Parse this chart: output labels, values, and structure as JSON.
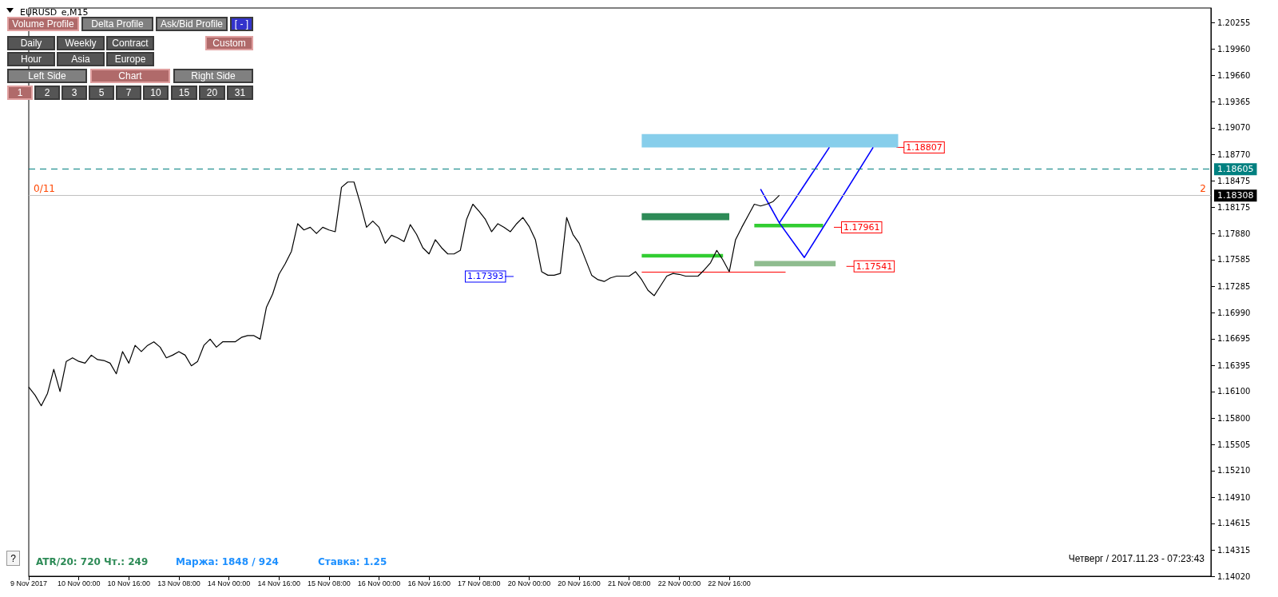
{
  "chart_data": {
    "type": "line",
    "title": "EURUSD_e,M15",
    "categories": [
      "9 Nov 2017",
      null,
      null,
      null,
      null,
      null,
      null,
      null,
      "10 Nov 00:00",
      null,
      null,
      null,
      null,
      null,
      null,
      null,
      "10 Nov 16:00",
      null,
      null,
      null,
      null,
      null,
      null,
      null,
      "13 Nov 08:00",
      null,
      null,
      null,
      null,
      null,
      null,
      null,
      "14 Nov 00:00",
      null,
      null,
      null,
      null,
      null,
      null,
      null,
      "14 Nov 16:00",
      null,
      null,
      null,
      null,
      null,
      null,
      null,
      "15 Nov 08:00",
      null,
      null,
      null,
      null,
      null,
      null,
      null,
      "16 Nov 00:00",
      null,
      null,
      null,
      null,
      null,
      null,
      null,
      "16 Nov 16:00",
      null,
      null,
      null,
      null,
      null,
      null,
      null,
      "17 Nov 08:00",
      null,
      null,
      null,
      null,
      null,
      null,
      null,
      "20 Nov 00:00",
      null,
      null,
      null,
      null,
      null,
      null,
      null,
      "20 Nov 16:00",
      null,
      null,
      null,
      null,
      null,
      null,
      null,
      "21 Nov 08:00",
      null,
      null,
      null,
      null,
      null,
      null,
      null,
      "22 Nov 00:00",
      null,
      null,
      null,
      null,
      null,
      null,
      null,
      "22 Nov 16:00",
      null,
      null,
      null,
      null,
      null,
      null,
      null,
      null,
      null,
      null,
      null,
      null,
      null,
      null,
      null,
      null,
      null,
      null,
      null,
      null,
      null,
      null,
      null,
      null,
      null,
      null,
      null,
      null,
      null,
      null,
      null,
      null,
      null,
      null,
      null,
      null,
      null,
      null,
      null,
      null,
      null,
      null,
      null,
      null,
      null,
      null,
      null,
      null,
      null,
      null,
      null,
      null,
      null,
      null,
      null,
      null,
      null,
      null,
      null,
      null,
      null,
      null,
      null,
      null,
      null,
      null,
      null,
      null,
      null,
      null,
      null,
      null,
      null,
      null,
      null,
      null,
      null
    ],
    "series": [
      {
        "color": "#000000",
        "values": [
          1.1615,
          1.1606,
          1.1594,
          1.1608,
          1.1635,
          1.161,
          1.1644,
          1.1648,
          1.1644,
          1.1642,
          1.1651,
          1.1646,
          1.1645,
          1.1642,
          1.163,
          1.1655,
          1.1642,
          1.1662,
          1.1655,
          1.1662,
          1.1666,
          1.166,
          1.1648,
          1.1651,
          1.1655,
          1.1651,
          1.1639,
          1.1644,
          1.1662,
          1.1669,
          1.166,
          1.1666,
          1.1666,
          1.1666,
          1.1671,
          1.1673,
          1.1673,
          1.1669,
          1.1705,
          1.172,
          1.1742,
          1.1754,
          1.1768,
          1.1799,
          1.1792,
          1.1795,
          1.1788,
          1.1795,
          1.1792,
          1.179,
          1.184,
          1.1846,
          1.1846,
          1.1822,
          1.1795,
          1.1802,
          1.1795,
          1.1777,
          1.1786,
          1.1783,
          1.1779,
          1.1798,
          1.1787,
          1.1772,
          1.1765,
          1.1781,
          1.1772,
          1.1765,
          1.1765,
          1.1769,
          1.1804,
          1.1821,
          1.1813,
          1.1804,
          1.179,
          1.1799,
          1.1795,
          1.179,
          1.1799,
          1.1806,
          1.1796,
          1.1781,
          1.1745,
          1.1741,
          1.1741,
          1.1743,
          1.1806,
          1.1787,
          1.1777,
          1.1759,
          1.1741,
          1.1736,
          1.1734,
          1.1738,
          1.174,
          1.174,
          1.174,
          1.1745,
          1.1736,
          1.1724,
          1.1718,
          1.1729,
          1.174,
          1.1743,
          1.1742,
          1.174,
          1.174,
          1.174,
          1.1747,
          1.1755,
          1.1769,
          1.1758,
          1.1745,
          1.1781,
          1.1795,
          1.1808,
          1.1821,
          1.1819,
          1.1821,
          1.1824,
          1.1831,
          null,
          null,
          null,
          null,
          null,
          null,
          null,
          null,
          null,
          null,
          null,
          null,
          null,
          null,
          null,
          null,
          null,
          null,
          null,
          null,
          null,
          null,
          null,
          null,
          null,
          null,
          null,
          null,
          null,
          null,
          null,
          null,
          null,
          null,
          null,
          null,
          null,
          null,
          null,
          null,
          null,
          null,
          null,
          null,
          null,
          null,
          null,
          null,
          null,
          null,
          null,
          null,
          null,
          null,
          null,
          null,
          null,
          null,
          null,
          null,
          null,
          null,
          null,
          null,
          null,
          null,
          null,
          null,
          null
        ]
      },
      {
        "color": "#0000ff",
        "values": [
          null,
          null,
          null,
          null,
          null,
          null,
          null,
          null,
          null,
          null,
          null,
          null,
          null,
          null,
          null,
          null,
          null,
          null,
          null,
          null,
          null,
          null,
          null,
          null,
          null,
          null,
          null,
          null,
          null,
          null,
          null,
          null,
          null,
          null,
          null,
          null,
          null,
          null,
          null,
          null,
          null,
          null,
          null,
          null,
          null,
          null,
          null,
          null,
          null,
          null,
          null,
          null,
          null,
          null,
          null,
          null,
          null,
          null,
          null,
          null,
          null,
          null,
          null,
          null,
          null,
          null,
          null,
          null,
          null,
          null,
          null,
          null,
          null,
          null,
          null,
          null,
          null,
          null,
          null,
          null,
          null,
          null,
          null,
          null,
          null,
          null,
          null,
          null,
          null,
          null,
          null,
          null,
          null,
          null,
          null,
          null,
          null,
          null,
          null,
          null,
          null,
          null,
          null,
          null,
          null,
          null,
          null,
          null,
          null,
          null,
          null,
          null,
          null,
          null,
          null,
          null,
          null,
          1.1838,
          null,
          null,
          1.18,
          null,
          null,
          null,
          1.1761,
          null,
          null,
          null,
          null,
          null,
          null,
          null,
          null,
          null,
          null,
          1.1885,
          null,
          null,
          null,
          null,
          null,
          null,
          null,
          null,
          null,
          null,
          null,
          null,
          null,
          null,
          null,
          null,
          null,
          null,
          null,
          null,
          null,
          null,
          null,
          null,
          null,
          null,
          null,
          null,
          null,
          null,
          null,
          null,
          null,
          null,
          null,
          null,
          null,
          null,
          null,
          null,
          null,
          null,
          null,
          null,
          null,
          null,
          null,
          null,
          null,
          null,
          null,
          null,
          null,
          null
        ]
      },
      {
        "color": "#0000ff",
        "values": [
          null,
          null,
          null,
          null,
          null,
          null,
          null,
          null,
          null,
          null,
          null,
          null,
          null,
          null,
          null,
          null,
          null,
          null,
          null,
          null,
          null,
          null,
          null,
          null,
          null,
          null,
          null,
          null,
          null,
          null,
          null,
          null,
          null,
          null,
          null,
          null,
          null,
          null,
          null,
          null,
          null,
          null,
          null,
          null,
          null,
          null,
          null,
          null,
          null,
          null,
          null,
          null,
          null,
          null,
          null,
          null,
          null,
          null,
          null,
          null,
          null,
          null,
          null,
          null,
          null,
          null,
          null,
          null,
          null,
          null,
          null,
          null,
          null,
          null,
          null,
          null,
          null,
          null,
          null,
          null,
          null,
          null,
          null,
          null,
          null,
          null,
          null,
          null,
          null,
          null,
          null,
          null,
          null,
          null,
          null,
          null,
          null,
          null,
          null,
          null,
          null,
          null,
          null,
          null,
          null,
          null,
          null,
          null,
          null,
          null,
          null,
          null,
          null,
          null,
          null,
          null,
          null,
          null,
          null,
          null,
          1.18,
          null,
          null,
          null,
          null,
          null,
          null,
          null,
          1.1885,
          null,
          null,
          null,
          null,
          null,
          null,
          null,
          null,
          null,
          null,
          null,
          null,
          null,
          null,
          null,
          null,
          null,
          null,
          null,
          null,
          null,
          null,
          null,
          null,
          null,
          null,
          null,
          null,
          null,
          null,
          null,
          null,
          null,
          null,
          null,
          null,
          null,
          null,
          null,
          null,
          null,
          null,
          null,
          null,
          null,
          null,
          null,
          null,
          null,
          null,
          null,
          null,
          null,
          null,
          null,
          null,
          null,
          null,
          null,
          null,
          null
        ]
      }
    ],
    "ylim": [
      1.1402,
      1.2042
    ],
    "yticks": [
      {
        "value": 1.20255,
        "label": "1.20255"
      },
      {
        "value": 1.1996,
        "label": "1.19960"
      },
      {
        "value": 1.1966,
        "label": "1.19660"
      },
      {
        "value": 1.19365,
        "label": "1.19365"
      },
      {
        "value": 1.1907,
        "label": "1.19070"
      },
      {
        "value": 1.1877,
        "label": "1.18770"
      },
      {
        "value": 1.18475,
        "label": "1.18475"
      },
      {
        "value": 1.18175,
        "label": "1.18175"
      },
      {
        "value": 1.1788,
        "label": "1.17880"
      },
      {
        "value": 1.17585,
        "label": "1.17585"
      },
      {
        "value": 1.17285,
        "label": "1.17285"
      },
      {
        "value": 1.1699,
        "label": "1.16990"
      },
      {
        "value": 1.16695,
        "label": "1.16695"
      },
      {
        "value": 1.16395,
        "label": "1.16395"
      },
      {
        "value": 1.161,
        "label": "1.16100"
      },
      {
        "value": 1.158,
        "label": "1.15800"
      },
      {
        "value": 1.15505,
        "label": "1.15505"
      },
      {
        "value": 1.1521,
        "label": "1.15210"
      },
      {
        "value": 1.1491,
        "label": "1.14910"
      },
      {
        "value": 1.14615,
        "label": "1.14615"
      },
      {
        "value": 1.14315,
        "label": "1.14315"
      },
      {
        "value": 1.1402,
        "label": "1.14020"
      }
    ],
    "ref_lines": [
      {
        "axis": "y",
        "value": 1.18605,
        "label": "1.18605",
        "color": "#008080",
        "line_style": "dashed"
      },
      {
        "axis": "y",
        "value": 1.18308,
        "label": "1.18308",
        "color": "#c0c0c0",
        "line_style": "solid"
      },
      {
        "axis": "y",
        "value": 1.1745,
        "color": "#ff0000",
        "line_style": "solid"
      }
    ],
    "bands": [
      {
        "axis": "y",
        "from": 1.1885,
        "to": 1.19,
        "label": "1.18807",
        "color": "#87ceeb"
      },
      {
        "axis": "y",
        "from": 1.1795,
        "to": 1.1799,
        "label": "1.17961",
        "color": "#32cd32"
      },
      {
        "axis": "y",
        "from": 1.1751,
        "to": 1.1757,
        "label": "1.17541",
        "color": "#8fbc8f"
      },
      {
        "axis": "y",
        "from": 1.1803,
        "to": 1.1811,
        "color": "#2e8b57"
      },
      {
        "axis": "y",
        "from": 1.1761,
        "to": 1.1765,
        "color": "#32cd32"
      }
    ],
    "annotations": [
      "0/11",
      "2",
      "1.17393",
      "Volume Profile",
      "Delta Profile",
      "Ask/Bid Profile",
      "[ - ]",
      "Daily",
      "Weekly",
      "Contract",
      "Custom",
      "Hour",
      "Asia",
      "Europe",
      "Left Side",
      "Chart",
      "Right Side",
      "1",
      "2",
      "3",
      "5",
      "7",
      "10",
      "15",
      "20",
      "31",
      "?",
      "ATR/20: 720",
      "Чт.: 249",
      "Маржа: 1848 / 924",
      "Ставка: 1.25",
      "Четверг / 2017.11.23 - 07:23:43"
    ]
  }
}
